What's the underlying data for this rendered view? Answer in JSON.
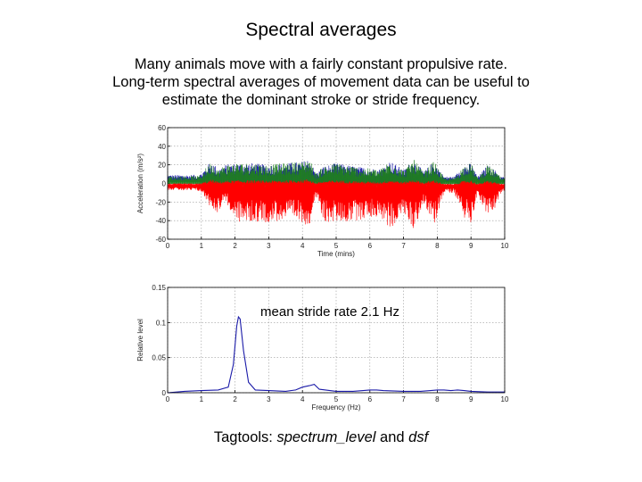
{
  "title": "Spectral averages",
  "description": [
    "Many animals move with a fairly constant propulsive rate.",
    "Long-term spectral averages of movement data can be useful to",
    "estimate the dominant stroke or stride frequency."
  ],
  "annotation": "mean stride rate 2.1 Hz",
  "footer": {
    "prefix": "Tagtools: ",
    "func1": "spectrum_level",
    "joiner": " and ",
    "func2": "dsf"
  },
  "chart_data": [
    {
      "type": "line",
      "xlabel": "Time (mins)",
      "ylabel": "Acceleration (m/s²)",
      "xlim": [
        0,
        10
      ],
      "ylim": [
        -60,
        60
      ],
      "xticks": [
        "0",
        "1",
        "2",
        "3",
        "4",
        "5",
        "6",
        "7",
        "8",
        "9",
        "10"
      ],
      "yticks": [
        "-60",
        "-40",
        "-20",
        "0",
        "20",
        "40",
        "60"
      ],
      "grid": true,
      "series_colors": [
        "#1a1aa8",
        "#1f7f1f",
        "#ff0000"
      ],
      "envelope": {
        "x": [
          0,
          0.3,
          0.5,
          0.9,
          1.0,
          1.3,
          1.5,
          1.7,
          2.0,
          2.5,
          3.0,
          3.5,
          4.0,
          4.2,
          4.4,
          4.6,
          5.0,
          5.3,
          5.6,
          6.0,
          6.3,
          6.6,
          7.0,
          7.3,
          7.6,
          7.9,
          8.2,
          8.5,
          8.8,
          9.0,
          9.2,
          9.5,
          9.7,
          9.9
        ],
        "upper": [
          8,
          8,
          8,
          8,
          10,
          25,
          15,
          20,
          22,
          22,
          20,
          22,
          24,
          28,
          10,
          18,
          22,
          20,
          18,
          16,
          15,
          25,
          14,
          26,
          12,
          24,
          6,
          6,
          20,
          22,
          6,
          20,
          14,
          6
        ],
        "lower": [
          -5,
          -5,
          -6,
          -6,
          -8,
          -25,
          -30,
          -15,
          -40,
          -40,
          -40,
          -38,
          -40,
          -45,
          -12,
          -40,
          -40,
          -40,
          -38,
          -35,
          -34,
          -48,
          -30,
          -48,
          -20,
          -45,
          -8,
          -8,
          -35,
          -40,
          -10,
          -35,
          -25,
          -8
        ]
      }
    },
    {
      "type": "line",
      "xlabel": "Frequency (Hz)",
      "ylabel": "Relative level",
      "xlim": [
        0,
        10
      ],
      "ylim": [
        0,
        0.15
      ],
      "xticks": [
        "0",
        "1",
        "2",
        "3",
        "4",
        "5",
        "6",
        "7",
        "8",
        "9",
        "10"
      ],
      "yticks": [
        "0",
        "0.05",
        "0.1",
        "0.15"
      ],
      "grid": true,
      "series_colors": [
        "#1a1aa8"
      ],
      "x": [
        0,
        0.5,
        1.0,
        1.5,
        1.8,
        1.95,
        2.05,
        2.1,
        2.15,
        2.25,
        2.4,
        2.6,
        3.0,
        3.5,
        3.8,
        4.0,
        4.2,
        4.35,
        4.5,
        5.0,
        5.5,
        5.8,
        6.0,
        6.2,
        6.4,
        7.0,
        7.5,
        7.8,
        8.0,
        8.2,
        8.4,
        8.6,
        8.8,
        9.0,
        9.5,
        10.0
      ],
      "values": [
        0.0,
        0.002,
        0.003,
        0.004,
        0.008,
        0.04,
        0.095,
        0.108,
        0.105,
        0.06,
        0.015,
        0.004,
        0.003,
        0.002,
        0.004,
        0.008,
        0.01,
        0.012,
        0.005,
        0.002,
        0.002,
        0.003,
        0.004,
        0.004,
        0.003,
        0.002,
        0.002,
        0.003,
        0.004,
        0.004,
        0.003,
        0.004,
        0.003,
        0.002,
        0.001,
        0.001
      ]
    }
  ]
}
